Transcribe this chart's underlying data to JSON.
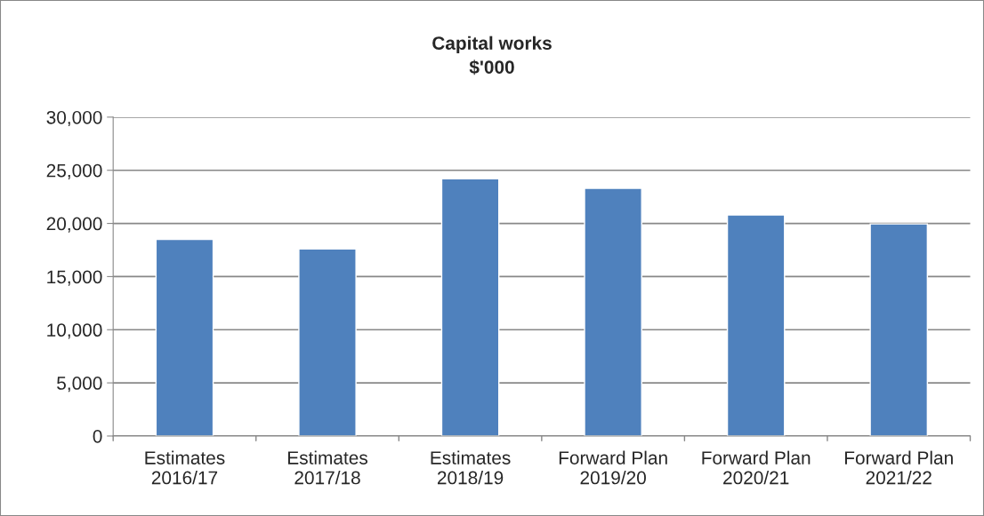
{
  "chart_data": {
    "type": "bar",
    "title": "Capital works\n$'000",
    "categories": [
      "Estimates\n2016/17",
      "Estimates\n2017/18",
      "Estimates\n2018/19",
      "Forward Plan\n2019/20",
      "Forward Plan\n2020/21",
      "Forward Plan\n2021/22"
    ],
    "values": [
      18500,
      17600,
      24200,
      23300,
      20800,
      19950
    ],
    "color": "#4f81bd",
    "ylim": [
      0,
      30000
    ],
    "yticks": [
      {
        "value": 0,
        "label": "0"
      },
      {
        "value": 5000,
        "label": "5,000"
      },
      {
        "value": 10000,
        "label": "10,000"
      },
      {
        "value": 15000,
        "label": "15,000"
      },
      {
        "value": 20000,
        "label": "20,000"
      },
      {
        "value": 25000,
        "label": "25,000"
      },
      {
        "value": 30000,
        "label": "30,000"
      }
    ],
    "grid": "y",
    "legend": false
  }
}
